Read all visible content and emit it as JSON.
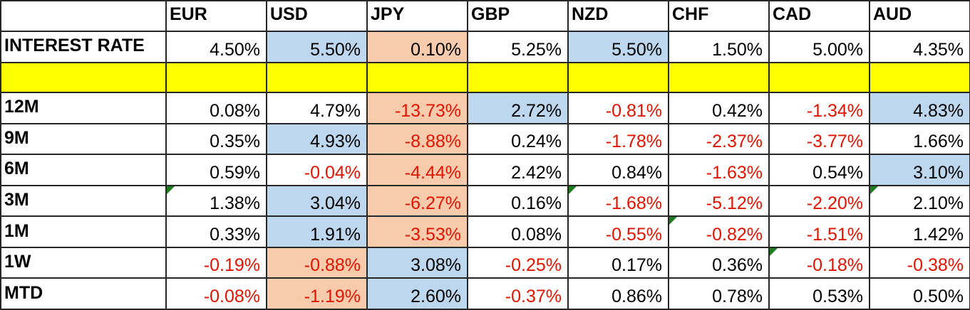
{
  "header": {
    "corner_label": "",
    "columns": [
      "EUR",
      "USD",
      "JPY",
      "GBP",
      "NZD",
      "CHF",
      "CAD",
      "AUD"
    ]
  },
  "rows": [
    {
      "type": "values",
      "label": "INTEREST RATE",
      "cells": [
        {
          "value": "4.50%",
          "bg": "none",
          "neg": false,
          "flag": false
        },
        {
          "value": "5.50%",
          "bg": "blue",
          "neg": false,
          "flag": false
        },
        {
          "value": "0.10%",
          "bg": "orange",
          "neg": false,
          "flag": false
        },
        {
          "value": "5.25%",
          "bg": "none",
          "neg": false,
          "flag": false
        },
        {
          "value": "5.50%",
          "bg": "blue",
          "neg": false,
          "flag": false
        },
        {
          "value": "1.50%",
          "bg": "none",
          "neg": false,
          "flag": false
        },
        {
          "value": "5.00%",
          "bg": "none",
          "neg": false,
          "flag": false
        },
        {
          "value": "4.35%",
          "bg": "none",
          "neg": false,
          "flag": false
        }
      ]
    },
    {
      "type": "spacer",
      "label": ""
    },
    {
      "type": "values",
      "label": "12M",
      "cells": [
        {
          "value": "0.08%",
          "bg": "none",
          "neg": false,
          "flag": false
        },
        {
          "value": "4.79%",
          "bg": "none",
          "neg": false,
          "flag": false
        },
        {
          "value": "-13.73%",
          "bg": "orange",
          "neg": true,
          "flag": false
        },
        {
          "value": "2.72%",
          "bg": "blue",
          "neg": false,
          "flag": false
        },
        {
          "value": "-0.81%",
          "bg": "none",
          "neg": true,
          "flag": false
        },
        {
          "value": "0.42%",
          "bg": "none",
          "neg": false,
          "flag": false
        },
        {
          "value": "-1.34%",
          "bg": "none",
          "neg": true,
          "flag": false
        },
        {
          "value": "4.83%",
          "bg": "blue",
          "neg": false,
          "flag": false
        }
      ]
    },
    {
      "type": "values",
      "label": "9M",
      "cells": [
        {
          "value": "0.35%",
          "bg": "none",
          "neg": false,
          "flag": false
        },
        {
          "value": "4.93%",
          "bg": "blue",
          "neg": false,
          "flag": false
        },
        {
          "value": "-8.88%",
          "bg": "orange",
          "neg": true,
          "flag": false
        },
        {
          "value": "0.24%",
          "bg": "none",
          "neg": false,
          "flag": false
        },
        {
          "value": "-1.78%",
          "bg": "none",
          "neg": true,
          "flag": false
        },
        {
          "value": "-2.37%",
          "bg": "none",
          "neg": true,
          "flag": false
        },
        {
          "value": "-3.77%",
          "bg": "none",
          "neg": true,
          "flag": false
        },
        {
          "value": "1.66%",
          "bg": "none",
          "neg": false,
          "flag": false
        }
      ]
    },
    {
      "type": "values",
      "label": "6M",
      "cells": [
        {
          "value": "0.59%",
          "bg": "none",
          "neg": false,
          "flag": false
        },
        {
          "value": "-0.04%",
          "bg": "none",
          "neg": true,
          "flag": false
        },
        {
          "value": "-4.44%",
          "bg": "orange",
          "neg": true,
          "flag": false
        },
        {
          "value": "2.42%",
          "bg": "none",
          "neg": false,
          "flag": false
        },
        {
          "value": "0.84%",
          "bg": "none",
          "neg": false,
          "flag": false
        },
        {
          "value": "-1.63%",
          "bg": "none",
          "neg": true,
          "flag": false
        },
        {
          "value": "0.54%",
          "bg": "none",
          "neg": false,
          "flag": false
        },
        {
          "value": "3.10%",
          "bg": "blue",
          "neg": false,
          "flag": false
        }
      ]
    },
    {
      "type": "values",
      "label": "3M",
      "cells": [
        {
          "value": "1.38%",
          "bg": "none",
          "neg": false,
          "flag": true
        },
        {
          "value": "3.04%",
          "bg": "blue",
          "neg": false,
          "flag": false
        },
        {
          "value": "-6.27%",
          "bg": "orange",
          "neg": true,
          "flag": false
        },
        {
          "value": "0.16%",
          "bg": "none",
          "neg": false,
          "flag": false
        },
        {
          "value": "-1.68%",
          "bg": "none",
          "neg": true,
          "flag": true
        },
        {
          "value": "-5.12%",
          "bg": "none",
          "neg": true,
          "flag": false
        },
        {
          "value": "-2.20%",
          "bg": "none",
          "neg": true,
          "flag": false
        },
        {
          "value": "2.10%",
          "bg": "none",
          "neg": false,
          "flag": true
        }
      ]
    },
    {
      "type": "values",
      "label": "1M",
      "cells": [
        {
          "value": "0.33%",
          "bg": "none",
          "neg": false,
          "flag": false
        },
        {
          "value": "1.91%",
          "bg": "blue",
          "neg": false,
          "flag": false
        },
        {
          "value": "-3.53%",
          "bg": "orange",
          "neg": true,
          "flag": false
        },
        {
          "value": "0.08%",
          "bg": "none",
          "neg": false,
          "flag": false
        },
        {
          "value": "-0.55%",
          "bg": "none",
          "neg": true,
          "flag": false
        },
        {
          "value": "-0.82%",
          "bg": "none",
          "neg": true,
          "flag": true
        },
        {
          "value": "-1.51%",
          "bg": "none",
          "neg": true,
          "flag": false
        },
        {
          "value": "1.42%",
          "bg": "none",
          "neg": false,
          "flag": false
        }
      ]
    },
    {
      "type": "values",
      "label": "1W",
      "cells": [
        {
          "value": "-0.19%",
          "bg": "none",
          "neg": true,
          "flag": false
        },
        {
          "value": "-0.88%",
          "bg": "orange",
          "neg": true,
          "flag": false
        },
        {
          "value": "3.08%",
          "bg": "blue",
          "neg": false,
          "flag": false
        },
        {
          "value": "-0.25%",
          "bg": "none",
          "neg": true,
          "flag": false
        },
        {
          "value": "0.17%",
          "bg": "none",
          "neg": false,
          "flag": false
        },
        {
          "value": "0.36%",
          "bg": "none",
          "neg": false,
          "flag": false
        },
        {
          "value": "-0.18%",
          "bg": "none",
          "neg": true,
          "flag": true
        },
        {
          "value": "-0.38%",
          "bg": "none",
          "neg": true,
          "flag": false
        }
      ]
    },
    {
      "type": "values",
      "label": "MTD",
      "cells": [
        {
          "value": "-0.08%",
          "bg": "none",
          "neg": true,
          "flag": false
        },
        {
          "value": "-1.19%",
          "bg": "orange",
          "neg": true,
          "flag": false
        },
        {
          "value": "2.60%",
          "bg": "blue",
          "neg": false,
          "flag": false
        },
        {
          "value": "-0.37%",
          "bg": "none",
          "neg": true,
          "flag": false
        },
        {
          "value": "0.86%",
          "bg": "none",
          "neg": false,
          "flag": false
        },
        {
          "value": "0.78%",
          "bg": "none",
          "neg": false,
          "flag": false
        },
        {
          "value": "0.53%",
          "bg": "none",
          "neg": false,
          "flag": false
        },
        {
          "value": "0.50%",
          "bg": "none",
          "neg": false,
          "flag": false
        }
      ]
    }
  ],
  "colors": {
    "highlight_blue": "#bdd7ee",
    "highlight_orange": "#f8cbad",
    "spacer_yellow": "#ffff00",
    "negative_text_red": "#e01400",
    "text_black": "#000000",
    "comment_flag_green": "#1e7e1e",
    "grid_border": "#262626"
  }
}
